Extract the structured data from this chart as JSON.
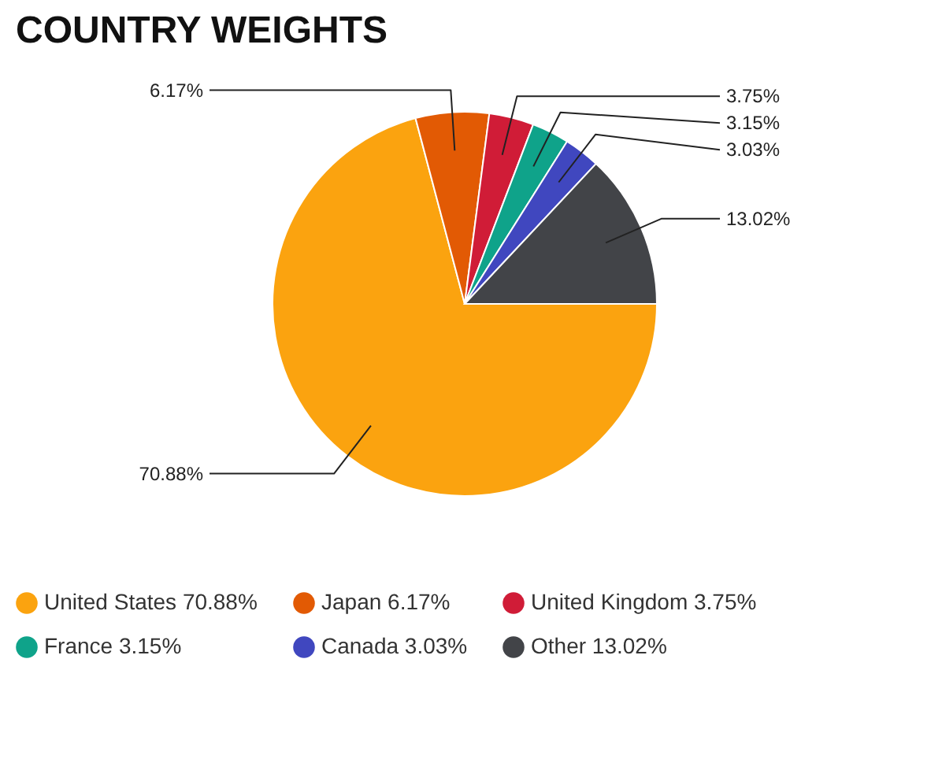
{
  "chart_data": {
    "type": "pie",
    "title": "COUNTRY WEIGHTS",
    "categories": [
      "United States",
      "Japan",
      "United Kingdom",
      "France",
      "Canada",
      "Other"
    ],
    "values": [
      70.88,
      6.17,
      3.75,
      3.15,
      3.03,
      13.02
    ],
    "colors": [
      "#fba30f",
      "#e25a04",
      "#d01c37",
      "#0fa38a",
      "#4047bf",
      "#424448"
    ],
    "value_labels": [
      "70.88%",
      "6.17%",
      "3.75%",
      "3.15%",
      "3.03%",
      "13.02%"
    ],
    "legend": "bottom"
  }
}
